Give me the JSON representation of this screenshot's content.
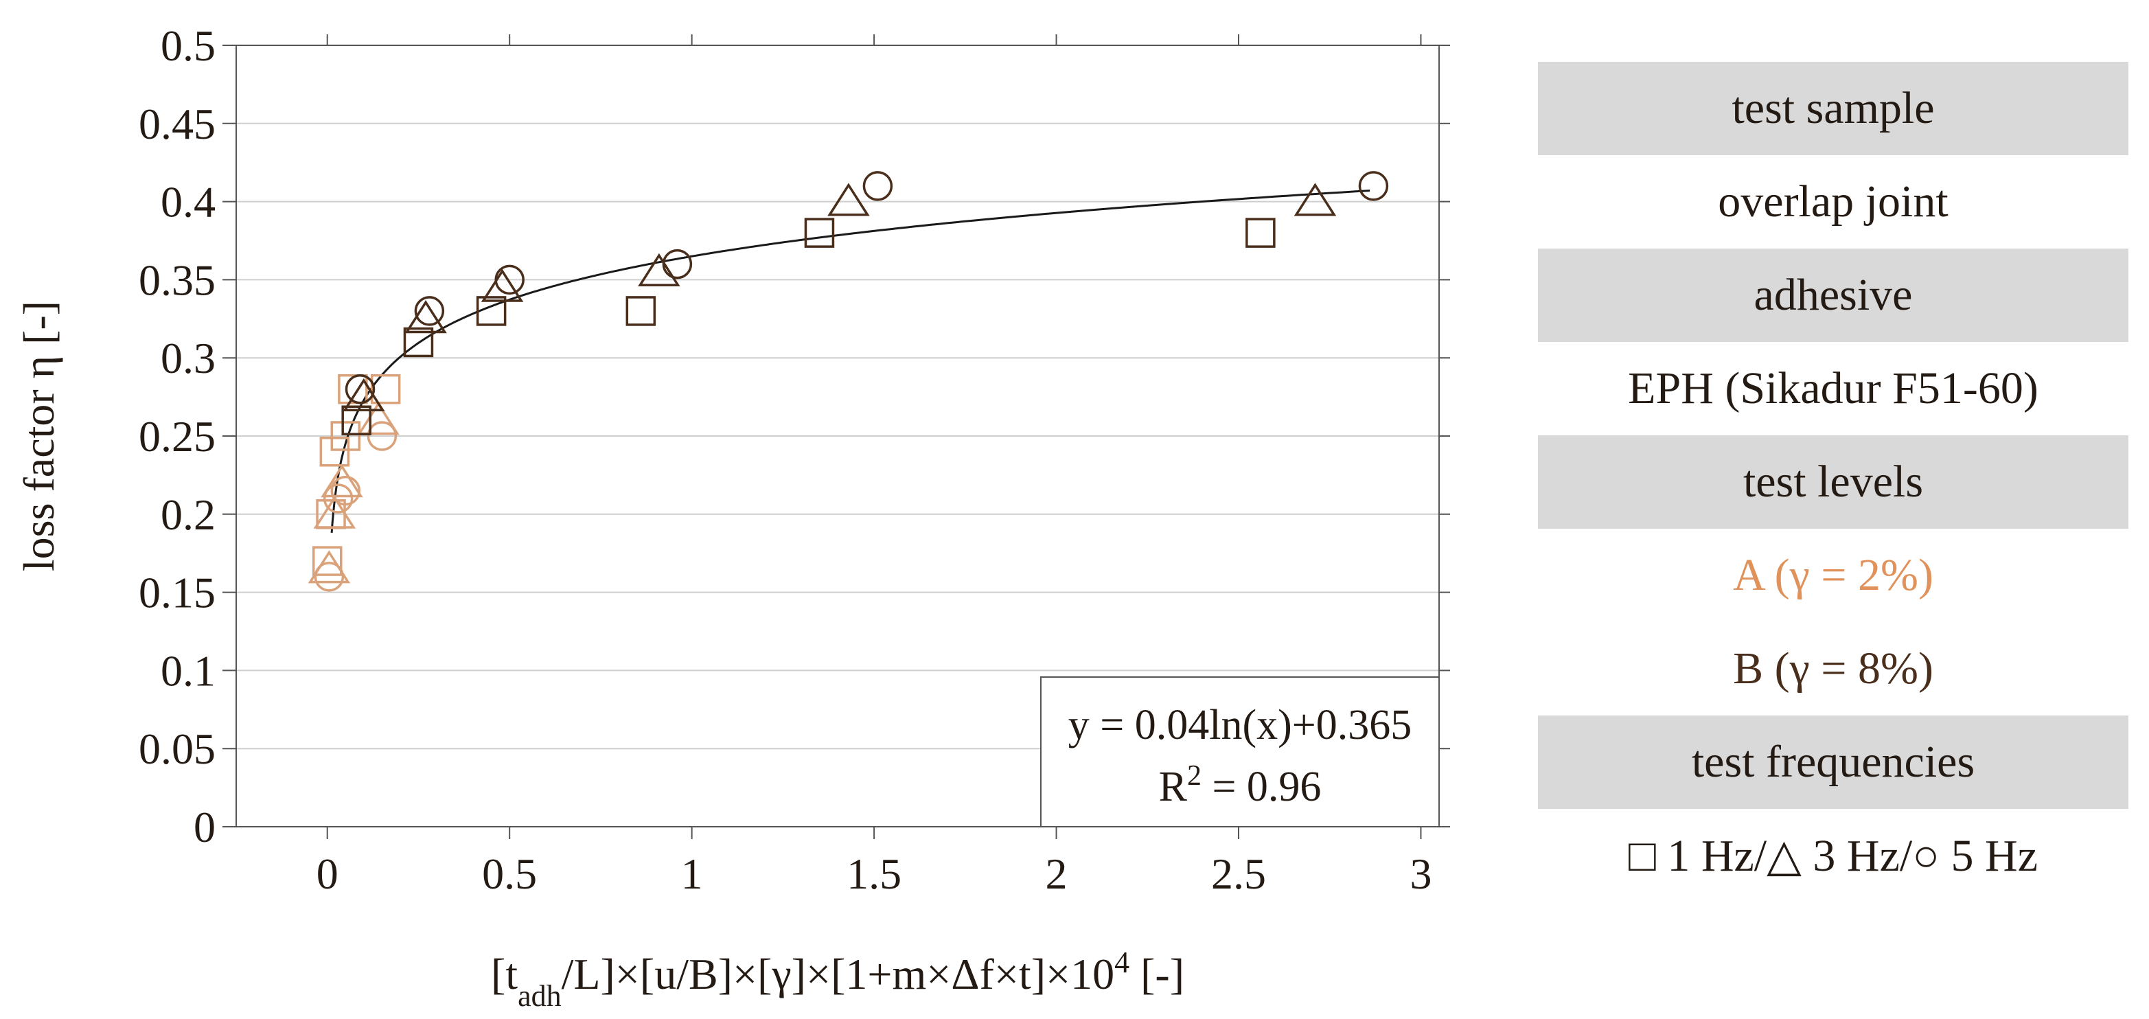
{
  "chart_data": {
    "type": "scatter",
    "xlabel": {
      "parts": [
        {
          "t": "[t"
        },
        {
          "t": "adh",
          "sub": true
        },
        {
          "t": "/L]×[u/B]×[γ]×[1+m×Δf×t]×10"
        },
        {
          "t": "4",
          "sup": true
        },
        {
          "t": " [-]"
        }
      ]
    },
    "ylabel": "loss factor η [-]",
    "xlim": [
      -0.25,
      3.05
    ],
    "ylim": [
      0,
      0.5
    ],
    "xticks": [
      0,
      0.5,
      1,
      1.5,
      2,
      2.5,
      3
    ],
    "xtick_labels": [
      "0",
      "0.5",
      "1",
      "1.5",
      "2",
      "2.5",
      "3"
    ],
    "yticks": [
      0,
      0.05,
      0.1,
      0.15,
      0.2,
      0.25,
      0.3,
      0.35,
      0.4,
      0.45,
      0.5
    ],
    "ytick_labels": [
      "0",
      "0.05",
      "0.1",
      "0.15",
      "0.2",
      "0.25",
      "0.3",
      "0.35",
      "0.4",
      "0.45",
      "0.5"
    ],
    "grid": "horizontal",
    "series": [
      {
        "level": "A",
        "frequency": "1 Hz",
        "marker": "square",
        "color": "#d9a27a",
        "x": [
          0.0,
          0.01,
          0.02,
          0.05,
          0.07,
          0.16
        ],
        "y": [
          0.17,
          0.2,
          0.24,
          0.25,
          0.28,
          0.28
        ]
      },
      {
        "level": "A",
        "frequency": "3 Hz",
        "marker": "triangle",
        "color": "#d9a27a",
        "x": [
          0.005,
          0.02,
          0.04,
          0.14
        ],
        "y": [
          0.165,
          0.2,
          0.22,
          0.26
        ]
      },
      {
        "level": "A",
        "frequency": "5 Hz",
        "marker": "circle",
        "color": "#d9a27a",
        "x": [
          0.005,
          0.03,
          0.05,
          0.15
        ],
        "y": [
          0.16,
          0.21,
          0.215,
          0.25
        ]
      },
      {
        "level": "B",
        "frequency": "1 Hz",
        "marker": "square",
        "color": "#4a2e1c",
        "x": [
          0.08,
          0.25,
          0.45,
          0.86,
          1.35,
          2.56
        ],
        "y": [
          0.26,
          0.31,
          0.33,
          0.33,
          0.38,
          0.38
        ]
      },
      {
        "level": "B",
        "frequency": "3 Hz",
        "marker": "triangle",
        "color": "#4a2e1c",
        "x": [
          0.1,
          0.27,
          0.48,
          0.91,
          1.43,
          2.71
        ],
        "y": [
          0.275,
          0.325,
          0.345,
          0.355,
          0.4,
          0.4
        ]
      },
      {
        "level": "B",
        "frequency": "5 Hz",
        "marker": "circle",
        "color": "#4a2e1c",
        "x": [
          0.09,
          0.28,
          0.5,
          0.96,
          1.51,
          2.87
        ],
        "y": [
          0.28,
          0.33,
          0.35,
          0.36,
          0.41,
          0.41
        ]
      }
    ],
    "trendline": {
      "type": "logarithmic",
      "a": 0.04,
      "b": 0.365,
      "color": "#1a1a1a"
    },
    "annotation": {
      "equation": "y = 0.04ln(x)+0.365",
      "r2_prefix": "R",
      "r2_sup": "2",
      "r2_suffix": " = 0.96",
      "placement": "bottom-right"
    }
  },
  "legend": {
    "rows": [
      {
        "text": "test sample",
        "shaded": true,
        "style": ""
      },
      {
        "text": "overlap joint",
        "shaded": false,
        "style": ""
      },
      {
        "text": "adhesive",
        "shaded": true,
        "style": ""
      },
      {
        "text": "EPH (Sikadur F51-60)",
        "shaded": false,
        "style": ""
      },
      {
        "text": "test levels",
        "shaded": true,
        "style": ""
      },
      {
        "text": "A (γ = 2%)",
        "shaded": false,
        "style": "a"
      },
      {
        "text": "B (γ = 8%)",
        "shaded": false,
        "style": "b"
      },
      {
        "text": "test frequencies",
        "shaded": true,
        "style": ""
      },
      {
        "text": "□ 1 Hz/△ 3 Hz/○ 5 Hz",
        "shaded": false,
        "style": ""
      }
    ]
  }
}
